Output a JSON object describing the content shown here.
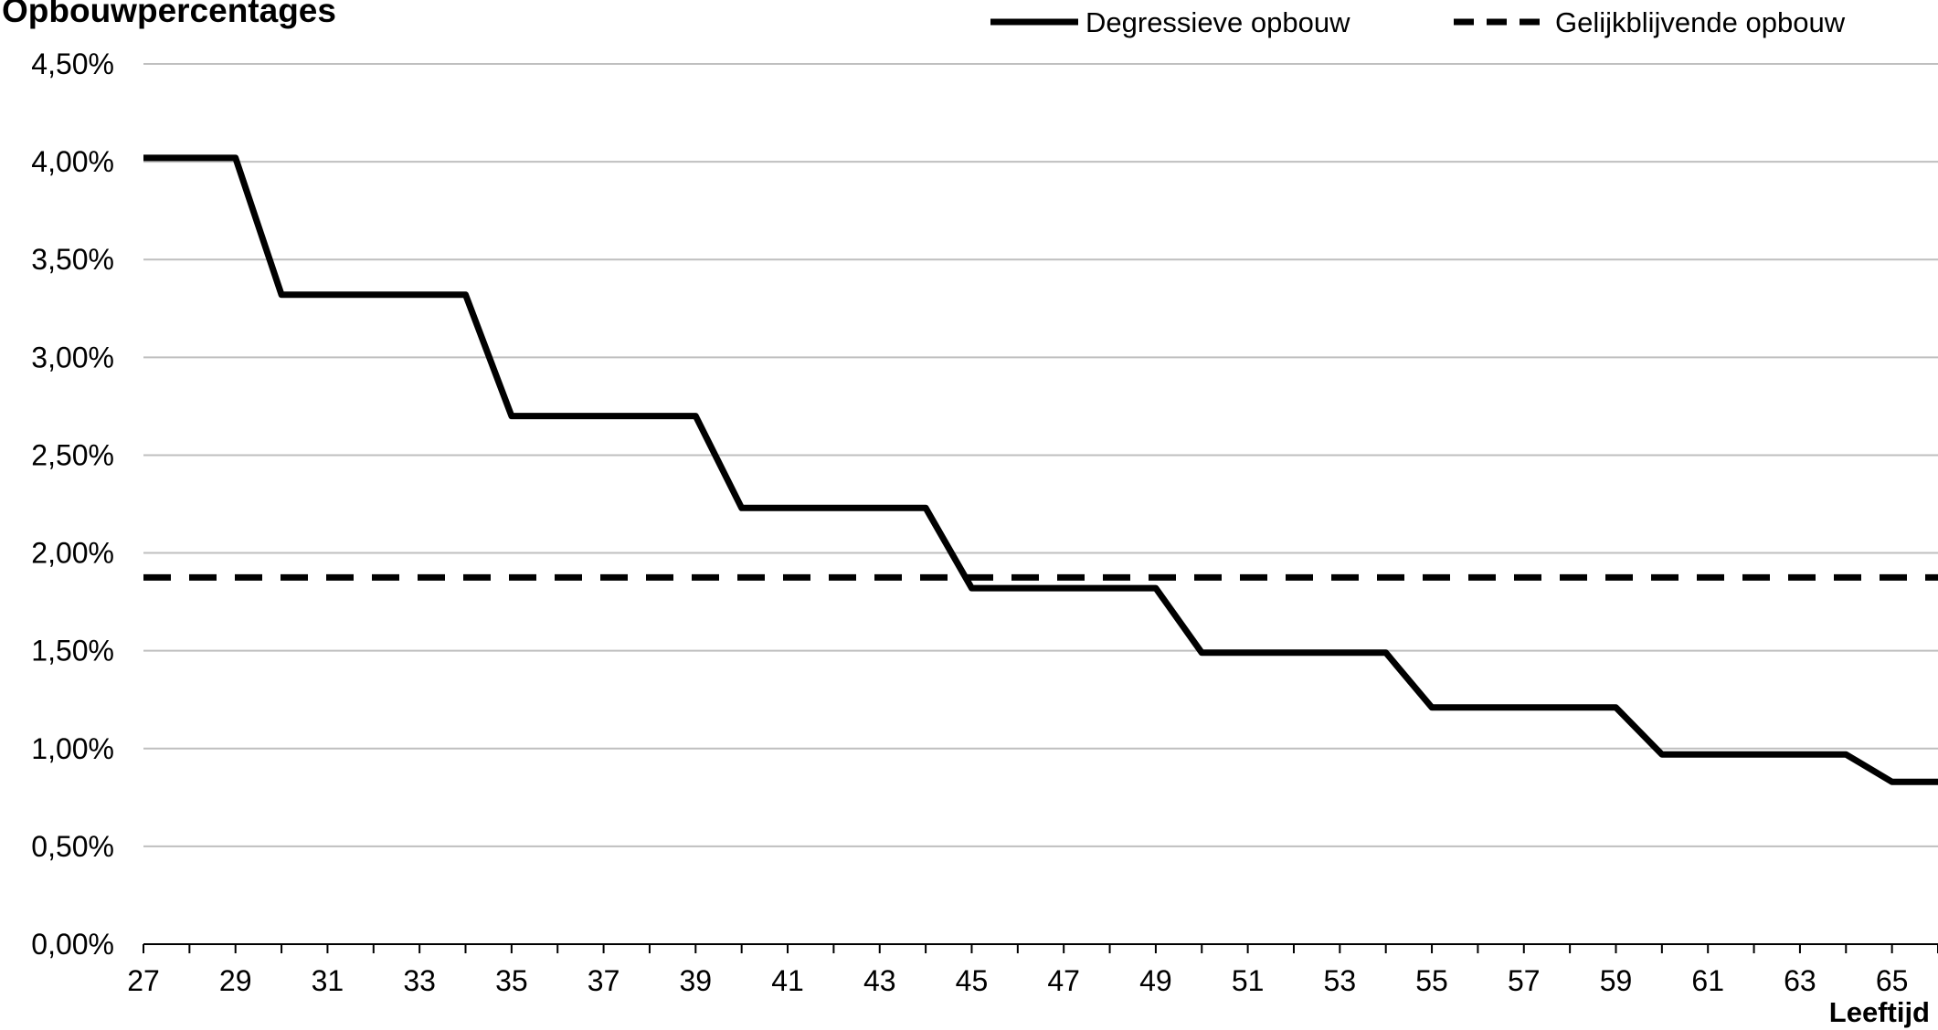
{
  "chart_data": {
    "type": "line",
    "title": "Opbouwpercentages",
    "xlabel": "Leeftijd",
    "ylabel": "",
    "xlim": [
      27,
      66
    ],
    "ylim": [
      0,
      4.5
    ],
    "x_ticks": [
      27,
      29,
      31,
      33,
      35,
      37,
      39,
      41,
      43,
      45,
      47,
      49,
      51,
      53,
      55,
      57,
      59,
      61,
      63,
      65
    ],
    "y_ticks": [
      {
        "value": 0.0,
        "label": "0,00%"
      },
      {
        "value": 0.5,
        "label": "0,50%"
      },
      {
        "value": 1.0,
        "label": "1,00%"
      },
      {
        "value": 1.5,
        "label": "1,50%"
      },
      {
        "value": 2.0,
        "label": "2,00%"
      },
      {
        "value": 2.5,
        "label": "2,50%"
      },
      {
        "value": 3.0,
        "label": "3,00%"
      },
      {
        "value": 3.5,
        "label": "3,50%"
      },
      {
        "value": 4.0,
        "label": "4,00%"
      },
      {
        "value": 4.5,
        "label": "4,50%"
      }
    ],
    "grid": "horizontal",
    "legend_position": "top-right",
    "series": [
      {
        "name": "Degressieve opbouw",
        "style": "solid",
        "color": "#000000",
        "points": [
          [
            27,
            4.02
          ],
          [
            29,
            4.02
          ],
          [
            30,
            3.32
          ],
          [
            34,
            3.32
          ],
          [
            35,
            2.7
          ],
          [
            39,
            2.7
          ],
          [
            40,
            2.23
          ],
          [
            44,
            2.23
          ],
          [
            45,
            1.82
          ],
          [
            49,
            1.82
          ],
          [
            50,
            1.49
          ],
          [
            54,
            1.49
          ],
          [
            55,
            1.21
          ],
          [
            59,
            1.21
          ],
          [
            60,
            0.97
          ],
          [
            64,
            0.97
          ],
          [
            65,
            0.83
          ],
          [
            66,
            0.83
          ]
        ]
      },
      {
        "name": "Gelijkblijvende opbouw",
        "style": "dashed",
        "color": "#000000",
        "points": [
          [
            27,
            1.875
          ],
          [
            66,
            1.875
          ]
        ]
      }
    ]
  }
}
